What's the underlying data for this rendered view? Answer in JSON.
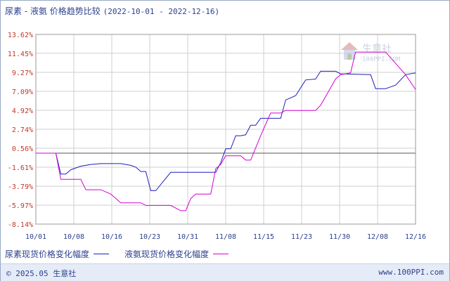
{
  "header": {
    "title": "尿素 - 液氨 价格趋势比较",
    "date_range": "(2022-10-01 - 2022-12-16)"
  },
  "watermark": {
    "text": "生意社",
    "sub": "100PPI.COM"
  },
  "footer": {
    "left": "© 2025.05 生意社",
    "right": "www.100PPI.com"
  },
  "colors": {
    "series1": "#1f1fbf",
    "series2": "#d400d4",
    "ytick": "#c0392b",
    "axis_text": "#2b3f8c",
    "grid": "#cfcfcf",
    "zero_line": "#555555"
  },
  "chart_data": {
    "type": "line",
    "xlabel": "",
    "ylabel": "",
    "y_ticks": [
      "13.62%",
      "11.45%",
      "9.27%",
      "7.09%",
      "4.92%",
      "2.74%",
      "0.56%",
      "-1.61%",
      "-3.79%",
      "-5.97%",
      "-8.14%"
    ],
    "ylim": [
      -8.14,
      13.62
    ],
    "x_ticks": [
      "10/01",
      "10/08",
      "10/16",
      "10/23",
      "10/31",
      "11/08",
      "11/15",
      "11/23",
      "11/30",
      "12/08",
      "12/16"
    ],
    "x_start": "2022-10-01",
    "x_end": "2022-12-16",
    "grid": true,
    "legend_position": "bottom-left",
    "series": [
      {
        "name": "尿素现货价格变化幅度",
        "points": [
          [
            "2022-10-01",
            0
          ],
          [
            "2022-10-05",
            0
          ],
          [
            "2022-10-06",
            -2.4
          ],
          [
            "2022-10-07",
            -2.4
          ],
          [
            "2022-10-08",
            -1.9
          ],
          [
            "2022-10-10",
            -1.5
          ],
          [
            "2022-10-12",
            -1.3
          ],
          [
            "2022-10-14",
            -1.2
          ],
          [
            "2022-10-18",
            -1.2
          ],
          [
            "2022-10-20",
            -1.4
          ],
          [
            "2022-10-21",
            -1.6
          ],
          [
            "2022-10-22",
            -2.1
          ],
          [
            "2022-10-23",
            -2.1
          ],
          [
            "2022-10-24",
            -4.3
          ],
          [
            "2022-10-25",
            -4.3
          ],
          [
            "2022-10-28",
            -2.2
          ],
          [
            "2022-11-06",
            -2.2
          ],
          [
            "2022-11-07",
            -1.1
          ],
          [
            "2022-11-08",
            0.5
          ],
          [
            "2022-11-09",
            0.5
          ],
          [
            "2022-11-10",
            2.0
          ],
          [
            "2022-11-11",
            2.0
          ],
          [
            "2022-11-12",
            2.1
          ],
          [
            "2022-11-13",
            3.2
          ],
          [
            "2022-11-14",
            3.2
          ],
          [
            "2022-11-15",
            4.0
          ],
          [
            "2022-11-19",
            4.0
          ],
          [
            "2022-11-20",
            6.1
          ],
          [
            "2022-11-22",
            6.6
          ],
          [
            "2022-11-24",
            8.4
          ],
          [
            "2022-11-26",
            8.5
          ],
          [
            "2022-11-27",
            9.4
          ],
          [
            "2022-11-30",
            9.4
          ],
          [
            "2022-12-01",
            9.1
          ],
          [
            "2022-12-07",
            9.0
          ],
          [
            "2022-12-08",
            7.4
          ],
          [
            "2022-12-10",
            7.4
          ],
          [
            "2022-12-11",
            7.6
          ],
          [
            "2022-12-12",
            7.8
          ],
          [
            "2022-12-14",
            9.0
          ],
          [
            "2022-12-16",
            9.2
          ]
        ]
      },
      {
        "name": "液氨现货价格变化幅度",
        "points": [
          [
            "2022-10-01",
            0
          ],
          [
            "2022-10-05",
            0
          ],
          [
            "2022-10-06",
            -3.0
          ],
          [
            "2022-10-10",
            -3.0
          ],
          [
            "2022-10-11",
            -4.2
          ],
          [
            "2022-10-14",
            -4.2
          ],
          [
            "2022-10-16",
            -4.7
          ],
          [
            "2022-10-18",
            -5.7
          ],
          [
            "2022-10-22",
            -5.7
          ],
          [
            "2022-10-23",
            -6.0
          ],
          [
            "2022-10-28",
            -6.0
          ],
          [
            "2022-10-30",
            -6.6
          ],
          [
            "2022-10-31",
            -6.6
          ],
          [
            "2022-11-01",
            -5.2
          ],
          [
            "2022-11-02",
            -4.7
          ],
          [
            "2022-11-03",
            -4.7
          ],
          [
            "2022-11-05",
            -4.7
          ],
          [
            "2022-11-06",
            -1.8
          ],
          [
            "2022-11-07",
            -1.3
          ],
          [
            "2022-11-08",
            -0.3
          ],
          [
            "2022-11-11",
            -0.3
          ],
          [
            "2022-11-12",
            -0.8
          ],
          [
            "2022-11-13",
            -0.8
          ],
          [
            "2022-11-15",
            2.0
          ],
          [
            "2022-11-17",
            4.6
          ],
          [
            "2022-11-19",
            4.6
          ],
          [
            "2022-11-20",
            4.9
          ],
          [
            "2022-11-26",
            4.9
          ],
          [
            "2022-11-27",
            5.5
          ],
          [
            "2022-11-30",
            8.5
          ],
          [
            "2022-12-01",
            9.0
          ],
          [
            "2022-12-03",
            9.2
          ],
          [
            "2022-12-04",
            11.6
          ],
          [
            "2022-12-10",
            11.6
          ],
          [
            "2022-12-14",
            9.0
          ],
          [
            "2022-12-16",
            7.3
          ]
        ]
      }
    ]
  }
}
